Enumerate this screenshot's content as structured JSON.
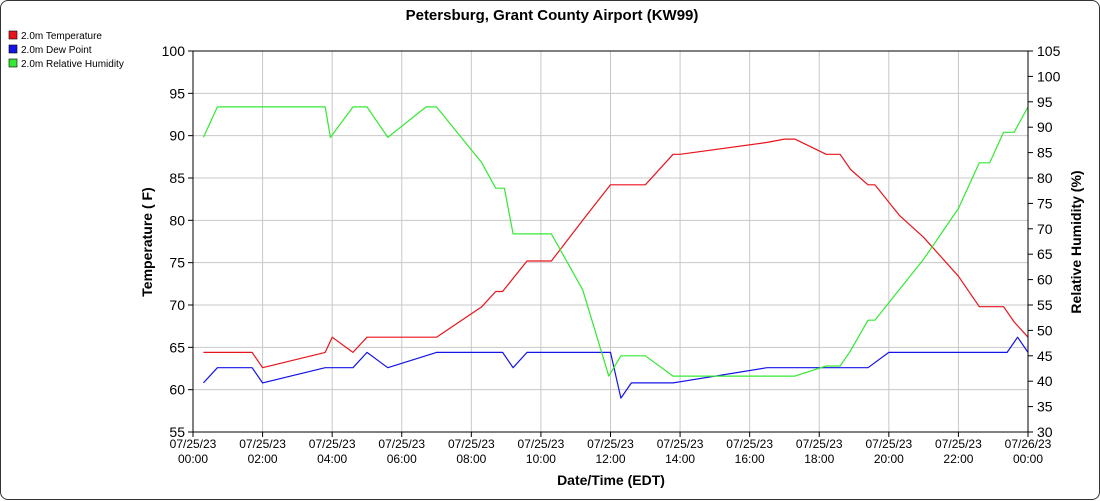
{
  "chart_data": {
    "type": "line",
    "title": "Petersburg, Grant County Airport (KW99)",
    "xlabel": "Date/Time (EDT)",
    "ylabel_left": "Temperature ( F)",
    "ylabel_right": "Relative Humidity (%)",
    "ylim_left": [
      55,
      100
    ],
    "ylim_right": [
      30,
      105
    ],
    "xlim_hours": [
      0,
      24
    ],
    "grid": true,
    "legend_placement": "top-left",
    "x_ticks": [
      {
        "hour": 0,
        "date": "07/25/23",
        "time": "00:00"
      },
      {
        "hour": 2,
        "date": "07/25/23",
        "time": "02:00"
      },
      {
        "hour": 4,
        "date": "07/25/23",
        "time": "04:00"
      },
      {
        "hour": 6,
        "date": "07/25/23",
        "time": "06:00"
      },
      {
        "hour": 8,
        "date": "07/25/23",
        "time": "08:00"
      },
      {
        "hour": 10,
        "date": "07/25/23",
        "time": "10:00"
      },
      {
        "hour": 12,
        "date": "07/25/23",
        "time": "12:00"
      },
      {
        "hour": 14,
        "date": "07/25/23",
        "time": "14:00"
      },
      {
        "hour": 16,
        "date": "07/25/23",
        "time": "16:00"
      },
      {
        "hour": 18,
        "date": "07/25/23",
        "time": "18:00"
      },
      {
        "hour": 20,
        "date": "07/25/23",
        "time": "20:00"
      },
      {
        "hour": 22,
        "date": "07/25/23",
        "time": "22:00"
      },
      {
        "hour": 24,
        "date": "07/26/23",
        "time": "00:00"
      }
    ],
    "y_ticks_left": [
      "55",
      "60",
      "65",
      "70",
      "75",
      "80",
      "85",
      "90",
      "95",
      "100"
    ],
    "y_ticks_right": [
      "30",
      "35",
      "40",
      "45",
      "50",
      "55",
      "60",
      "65",
      "70",
      "75",
      "80",
      "85",
      "90",
      "95",
      "100",
      "105"
    ],
    "series": [
      {
        "name": "2.0m Temperature",
        "axis": "left",
        "color": "#e8141c",
        "x": [
          0.3,
          1.7,
          2,
          3.8,
          4,
          4.6,
          5,
          7,
          8.3,
          8.7,
          8.9,
          9.6,
          10.3,
          11.2,
          12,
          13,
          13.8,
          14,
          16.5,
          17,
          17.3,
          18.2,
          18.6,
          18.9,
          19.4,
          19.6,
          20.3,
          21,
          22,
          22.6,
          23.3,
          23.6,
          24
        ],
        "values": [
          64.4,
          64.4,
          62.6,
          64.4,
          66.2,
          64.4,
          66.2,
          66.2,
          69.8,
          71.6,
          71.6,
          75.2,
          75.2,
          80.0,
          84.2,
          84.2,
          87.8,
          87.8,
          89.2,
          89.6,
          89.6,
          87.8,
          87.8,
          86.0,
          84.2,
          84.2,
          80.6,
          78.0,
          73.4,
          69.8,
          69.8,
          68.0,
          66.2
        ]
      },
      {
        "name": "2.0m Dew Point",
        "axis": "left",
        "color": "#1414e6",
        "x": [
          0.3,
          0.7,
          1.7,
          2,
          3.8,
          4.6,
          5,
          5.6,
          7,
          8.3,
          8.9,
          9.2,
          9.6,
          10,
          12,
          12.3,
          12.6,
          13.8,
          16.5,
          17,
          18.2,
          18.9,
          19.4,
          20,
          22,
          23,
          23.4,
          23.7,
          24
        ],
        "values": [
          60.8,
          62.6,
          62.6,
          60.8,
          62.6,
          62.6,
          64.4,
          62.6,
          64.4,
          64.4,
          64.4,
          62.6,
          64.4,
          64.4,
          64.4,
          59.0,
          60.8,
          60.8,
          62.6,
          62.6,
          62.6,
          62.6,
          62.6,
          64.4,
          64.4,
          64.4,
          64.4,
          66.2,
          64.4
        ]
      },
      {
        "name": "2.0m Relative Humidity",
        "axis": "right",
        "color": "#34e834",
        "x": [
          0.3,
          0.7,
          2,
          3.8,
          3.95,
          4.6,
          5,
          5.6,
          6.7,
          7,
          8.3,
          8.7,
          8.95,
          9.2,
          9.9,
          10.3,
          11.2,
          11.95,
          12.3,
          13,
          13.8,
          16,
          17.3,
          18.2,
          18.6,
          18.9,
          19.4,
          19.6,
          21,
          22,
          22.6,
          22.9,
          23.3,
          23.6,
          24
        ],
        "values": [
          88,
          94,
          94,
          94,
          88,
          94,
          94,
          88,
          94,
          94,
          83,
          78,
          78,
          69,
          69,
          69,
          58,
          41,
          45,
          45,
          41,
          41,
          41,
          43,
          43,
          46,
          52,
          52,
          64,
          74,
          83,
          83,
          89,
          89,
          94
        ]
      }
    ]
  }
}
